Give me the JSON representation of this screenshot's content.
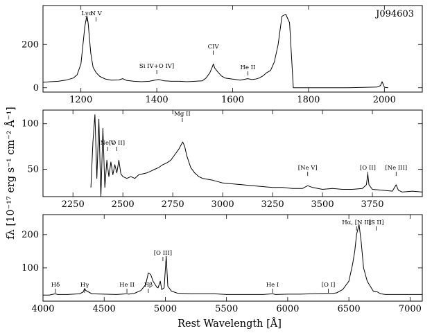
{
  "chart_data": [
    {
      "type": "line",
      "object_label": "J094603",
      "xlim": [
        1100,
        2100
      ],
      "ylim": [
        -20,
        380
      ],
      "x_ticks": [
        1200,
        1400,
        1600,
        1800,
        2000
      ],
      "y_ticks": [
        0,
        200
      ],
      "series": [
        {
          "values": [
            [
              1100,
              25
            ],
            [
              1120,
              28
            ],
            [
              1140,
              30
            ],
            [
              1160,
              35
            ],
            [
              1180,
              45
            ],
            [
              1190,
              60
            ],
            [
              1200,
              110
            ],
            [
              1206,
              210
            ],
            [
              1210,
              280
            ],
            [
              1214,
              320
            ],
            [
              1216,
              330
            ],
            [
              1219,
              300
            ],
            [
              1222,
              240
            ],
            [
              1226,
              160
            ],
            [
              1232,
              95
            ],
            [
              1240,
              70
            ],
            [
              1250,
              52
            ],
            [
              1265,
              40
            ],
            [
              1280,
              35
            ],
            [
              1300,
              36
            ],
            [
              1310,
              42
            ],
            [
              1320,
              34
            ],
            [
              1340,
              30
            ],
            [
              1360,
              28
            ],
            [
              1380,
              30
            ],
            [
              1395,
              35
            ],
            [
              1405,
              38
            ],
            [
              1420,
              32
            ],
            [
              1440,
              30
            ],
            [
              1460,
              30
            ],
            [
              1480,
              28
            ],
            [
              1500,
              30
            ],
            [
              1520,
              32
            ],
            [
              1530,
              45
            ],
            [
              1540,
              70
            ],
            [
              1546,
              95
            ],
            [
              1549,
              110
            ],
            [
              1553,
              90
            ],
            [
              1560,
              75
            ],
            [
              1570,
              55
            ],
            [
              1580,
              45
            ],
            [
              1600,
              40
            ],
            [
              1620,
              35
            ],
            [
              1640,
              42
            ],
            [
              1650,
              38
            ],
            [
              1660,
              40
            ],
            [
              1670,
              45
            ],
            [
              1680,
              55
            ],
            [
              1690,
              70
            ],
            [
              1700,
              80
            ],
            [
              1710,
              120
            ],
            [
              1720,
              200
            ],
            [
              1730,
              330
            ],
            [
              1740,
              340
            ],
            [
              1750,
              300
            ],
            [
              1755,
              150
            ],
            [
              1760,
              0
            ],
            [
              1800,
              0
            ],
            [
              1900,
              0
            ],
            [
              1980,
              3
            ],
            [
              1990,
              10
            ],
            [
              1994,
              28
            ],
            [
              1998,
              12
            ],
            [
              2000,
              2
            ],
            [
              2010,
              0
            ]
          ]
        }
      ],
      "annotations": [
        {
          "label": "Lyα",
          "x": 1216
        },
        {
          "label": "N V",
          "x": 1240
        },
        {
          "label": "Si IV+O IV]",
          "x": 1400
        },
        {
          "label": "CIV",
          "x": 1549
        },
        {
          "label": "He II",
          "x": 1640
        }
      ]
    },
    {
      "type": "line",
      "xlim": [
        2100,
        4000
      ],
      "ylim": [
        20,
        115
      ],
      "x_ticks": [
        2250,
        2500,
        2750,
        3000,
        3250,
        3500,
        3750
      ],
      "y_ticks": [
        50,
        100
      ],
      "series": [
        {
          "values": [
            [
              2340,
              30
            ],
            [
              2350,
              80
            ],
            [
              2360,
              110
            ],
            [
              2370,
              40
            ],
            [
              2380,
              105
            ],
            [
              2390,
              20
            ],
            [
              2400,
              95
            ],
            [
              2410,
              30
            ],
            [
              2420,
              60
            ],
            [
              2430,
              42
            ],
            [
              2440,
              58
            ],
            [
              2450,
              44
            ],
            [
              2460,
              55
            ],
            [
              2470,
              46
            ],
            [
              2480,
              60
            ],
            [
              2490,
              45
            ],
            [
              2500,
              42
            ],
            [
              2520,
              40
            ],
            [
              2540,
              42
            ],
            [
              2560,
              40
            ],
            [
              2580,
              44
            ],
            [
              2600,
              45
            ],
            [
              2620,
              46
            ],
            [
              2640,
              48
            ],
            [
              2660,
              50
            ],
            [
              2680,
              52
            ],
            [
              2700,
              55
            ],
            [
              2720,
              57
            ],
            [
              2740,
              60
            ],
            [
              2760,
              66
            ],
            [
              2780,
              72
            ],
            [
              2790,
              76
            ],
            [
              2800,
              80
            ],
            [
              2810,
              75
            ],
            [
              2820,
              65
            ],
            [
              2840,
              52
            ],
            [
              2860,
              46
            ],
            [
              2880,
              42
            ],
            [
              2900,
              40
            ],
            [
              2950,
              38
            ],
            [
              3000,
              35
            ],
            [
              3050,
              34
            ],
            [
              3100,
              33
            ],
            [
              3150,
              32
            ],
            [
              3200,
              31
            ],
            [
              3250,
              30
            ],
            [
              3300,
              30
            ],
            [
              3350,
              29
            ],
            [
              3400,
              29
            ],
            [
              3426,
              32
            ],
            [
              3450,
              30
            ],
            [
              3500,
              28
            ],
            [
              3550,
              29
            ],
            [
              3600,
              28
            ],
            [
              3650,
              28
            ],
            [
              3700,
              29
            ],
            [
              3720,
              33
            ],
            [
              3727,
              45
            ],
            [
              3733,
              33
            ],
            [
              3750,
              28
            ],
            [
              3800,
              27
            ],
            [
              3850,
              26
            ],
            [
              3869,
              33
            ],
            [
              3880,
              27
            ],
            [
              3900,
              25
            ],
            [
              3950,
              26
            ],
            [
              4000,
              25
            ]
          ]
        }
      ],
      "annotations": [
        {
          "label": "Ne V",
          "x": 2424
        },
        {
          "label": "[O II]",
          "x": 2470
        },
        {
          "label": "Mg II",
          "x": 2798
        },
        {
          "label": "[Ne V]",
          "x": 3426
        },
        {
          "label": "[O II]",
          "x": 3727
        },
        {
          "label": "[Ne III]",
          "x": 3869
        }
      ]
    },
    {
      "type": "line",
      "xlim": [
        4000,
        7100
      ],
      "ylim": [
        0,
        260
      ],
      "x_ticks": [
        4000,
        4500,
        5000,
        5500,
        6000,
        6500,
        7000
      ],
      "y_ticks": [
        100,
        200
      ],
      "series": [
        {
          "values": [
            [
              4000,
              18
            ],
            [
              4050,
              18
            ],
            [
              4100,
              22
            ],
            [
              4120,
              20
            ],
            [
              4200,
              20
            ],
            [
              4300,
              22
            ],
            [
              4330,
              28
            ],
            [
              4340,
              38
            ],
            [
              4350,
              32
            ],
            [
              4370,
              28
            ],
            [
              4400,
              22
            ],
            [
              4500,
              21
            ],
            [
              4600,
              20
            ],
            [
              4686,
              22
            ],
            [
              4700,
              21
            ],
            [
              4750,
              24
            ],
            [
              4800,
              32
            ],
            [
              4840,
              50
            ],
            [
              4861,
              85
            ],
            [
              4880,
              80
            ],
            [
              4900,
              60
            ],
            [
              4930,
              42
            ],
            [
              4940,
              40
            ],
            [
              4959,
              60
            ],
            [
              4970,
              35
            ],
            [
              4990,
              40
            ],
            [
              5007,
              135
            ],
            [
              5020,
              45
            ],
            [
              5050,
              30
            ],
            [
              5100,
              24
            ],
            [
              5200,
              22
            ],
            [
              5300,
              22
            ],
            [
              5400,
              22
            ],
            [
              5500,
              20
            ],
            [
              5600,
              20
            ],
            [
              5700,
              20
            ],
            [
              5800,
              20
            ],
            [
              5876,
              22
            ],
            [
              5900,
              20
            ],
            [
              6000,
              21
            ],
            [
              6100,
              21
            ],
            [
              6200,
              22
            ],
            [
              6300,
              23
            ],
            [
              6364,
              23
            ],
            [
              6400,
              25
            ],
            [
              6450,
              35
            ],
            [
              6500,
              60
            ],
            [
              6530,
              110
            ],
            [
              6548,
              150
            ],
            [
              6563,
              200
            ],
            [
              6583,
              230
            ],
            [
              6600,
              180
            ],
            [
              6620,
              100
            ],
            [
              6650,
              60
            ],
            [
              6700,
              30
            ],
            [
              6716,
              28
            ],
            [
              6731,
              28
            ],
            [
              6760,
              22
            ],
            [
              6800,
              20
            ],
            [
              6900,
              20
            ],
            [
              7000,
              20
            ],
            [
              7100,
              20
            ]
          ]
        }
      ],
      "annotations": [
        {
          "label": "Hδ",
          "x": 4102
        },
        {
          "label": "Hγ",
          "x": 4340
        },
        {
          "label": "He II",
          "x": 4686
        },
        {
          "label": "Hβ",
          "x": 4861
        },
        {
          "label": "[O III]",
          "x": 4980
        },
        {
          "label": "He I",
          "x": 5876
        },
        {
          "label": "[O I]",
          "x": 6332
        },
        {
          "label": "Hα, [N II]",
          "x": 6563
        },
        {
          "label": "[S II]",
          "x": 6723
        }
      ]
    }
  ],
  "ylabel": "fλ [10⁻¹⁷ erg s⁻¹ cm⁻² Å⁻¹]",
  "xlabel": "Rest Wavelength [Å]"
}
